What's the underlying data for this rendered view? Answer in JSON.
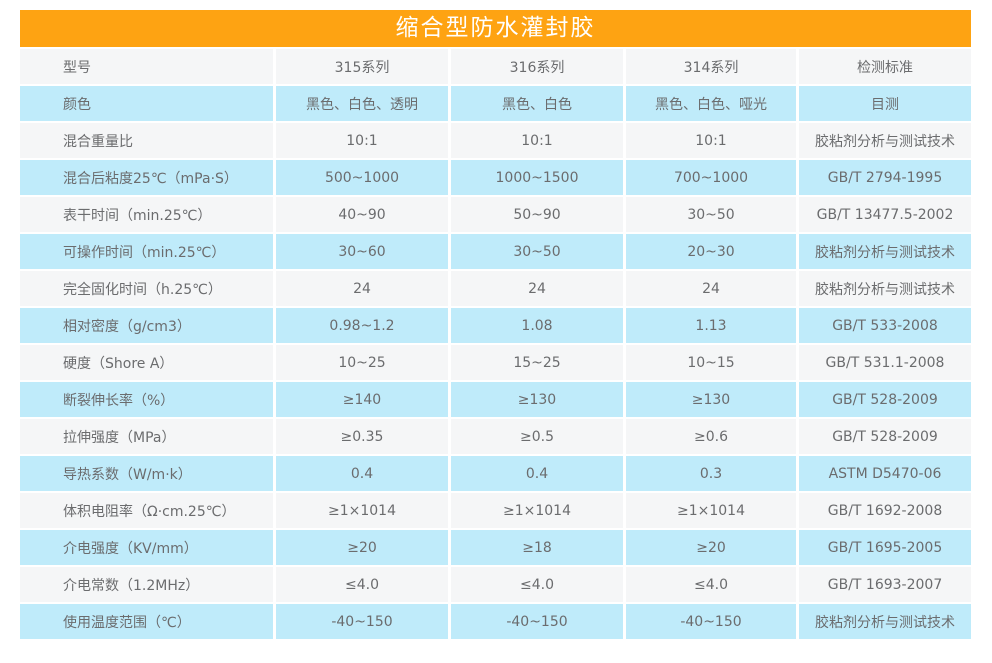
{
  "title": "缩合型防水灌封胶",
  "colors": {
    "header_bg": "#fea312",
    "row_blue": "#bfebfa",
    "row_white": "#f5f6f7",
    "text": "#6b6c6e",
    "title_text": "#ffffff"
  },
  "table": {
    "columns": [
      "型号",
      "315系列",
      "316系列",
      "314系列",
      "检测标准"
    ],
    "rows": [
      [
        "颜色",
        "黑色、白色、透明",
        "黑色、白色",
        "黑色、白色、哑光",
        "目测"
      ],
      [
        "混合重量比",
        "10:1",
        "10:1",
        "10:1",
        "胶粘剂分析与测试技术"
      ],
      [
        "混合后粘度25℃（mPa·S）",
        "500~1000",
        "1000~1500",
        "700~1000",
        "GB/T 2794-1995"
      ],
      [
        "表干时间（min.25℃）",
        "40~90",
        "50~90",
        "30~50",
        "GB/T 13477.5-2002"
      ],
      [
        "可操作时间（min.25℃）",
        "30~60",
        "30~50",
        "20~30",
        "胶粘剂分析与测试技术"
      ],
      [
        "完全固化时间（h.25℃）",
        "24",
        "24",
        "24",
        "胶粘剂分析与测试技术"
      ],
      [
        "相对密度（g/cm3）",
        "0.98~1.2",
        "1.08",
        "1.13",
        "GB/T 533-2008"
      ],
      [
        "硬度（Shore A）",
        "10~25",
        "15~25",
        "10~15",
        "GB/T 531.1-2008"
      ],
      [
        "断裂伸长率（%）",
        "≥140",
        "≥130",
        "≥130",
        "GB/T 528-2009"
      ],
      [
        "拉伸强度（MPa）",
        "≥0.35",
        "≥0.5",
        "≥0.6",
        "GB/T 528-2009"
      ],
      [
        "导热系数（W/m·k）",
        "0.4",
        "0.4",
        "0.3",
        "ASTM D5470-06"
      ],
      [
        "体积电阻率（Ω·cm.25℃）",
        "≥1×1014",
        "≥1×1014",
        "≥1×1014",
        "GB/T 1692-2008"
      ],
      [
        "介电强度（KV/mm）",
        "≥20",
        "≥18",
        "≥20",
        "GB/T 1695-2005"
      ],
      [
        "介电常数（1.2MHz）",
        "≤4.0",
        "≤4.0",
        "≤4.0",
        "GB/T 1693-2007"
      ],
      [
        "使用温度范围（℃）",
        "-40~150",
        "-40~150",
        "-40~150",
        "胶粘剂分析与测试技术"
      ]
    ]
  }
}
